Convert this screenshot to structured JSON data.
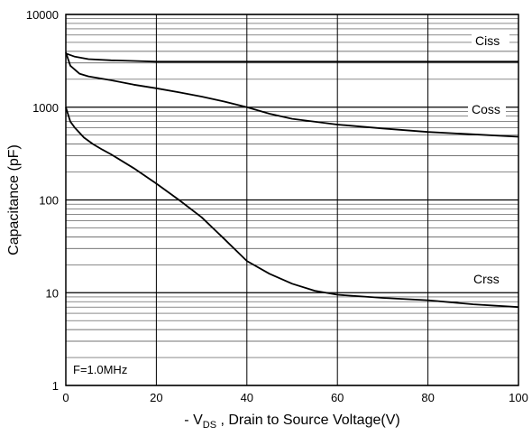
{
  "chart_data": {
    "type": "line",
    "title": "",
    "xlabel": "- V",
    "xlabel_sub": "DS",
    "xlabel_rest": " , Drain to Source Voltage(V)",
    "ylabel": "Capacitance (pF)",
    "xlim": [
      0,
      100
    ],
    "ylim": [
      1,
      10000
    ],
    "yscale": "log",
    "grid": true,
    "x_ticks": [
      0,
      20,
      40,
      60,
      80,
      100
    ],
    "x_tick_labels": [
      "0",
      "20",
      "40",
      "60",
      "80",
      "100"
    ],
    "y_ticks": [
      1,
      10,
      100,
      1000,
      10000
    ],
    "y_tick_labels": [
      "1",
      "10",
      "100",
      "1000",
      "10000"
    ],
    "annotation": "F=1.0MHz",
    "series": [
      {
        "name": "Ciss",
        "x": [
          0,
          2,
          5,
          10,
          15,
          20,
          30,
          40,
          50,
          60,
          80,
          100
        ],
        "y": [
          3800,
          3500,
          3300,
          3200,
          3150,
          3100,
          3100,
          3100,
          3100,
          3100,
          3100,
          3100
        ]
      },
      {
        "name": "Coss",
        "x": [
          0,
          1,
          3,
          5,
          10,
          15,
          20,
          25,
          30,
          35,
          40,
          45,
          50,
          60,
          70,
          80,
          90,
          100
        ],
        "y": [
          3900,
          2800,
          2300,
          2150,
          1950,
          1750,
          1600,
          1450,
          1300,
          1150,
          1000,
          850,
          750,
          650,
          590,
          540,
          510,
          480
        ]
      },
      {
        "name": "Crss",
        "x": [
          0,
          1,
          2,
          4,
          6,
          8,
          10,
          15,
          20,
          25,
          30,
          35,
          40,
          45,
          50,
          55,
          60,
          70,
          80,
          90,
          100
        ],
        "y": [
          1000,
          700,
          600,
          470,
          400,
          350,
          310,
          220,
          150,
          100,
          65,
          38,
          22,
          16,
          12.5,
          10.5,
          9.5,
          8.8,
          8.3,
          7.5,
          7
        ]
      }
    ]
  }
}
